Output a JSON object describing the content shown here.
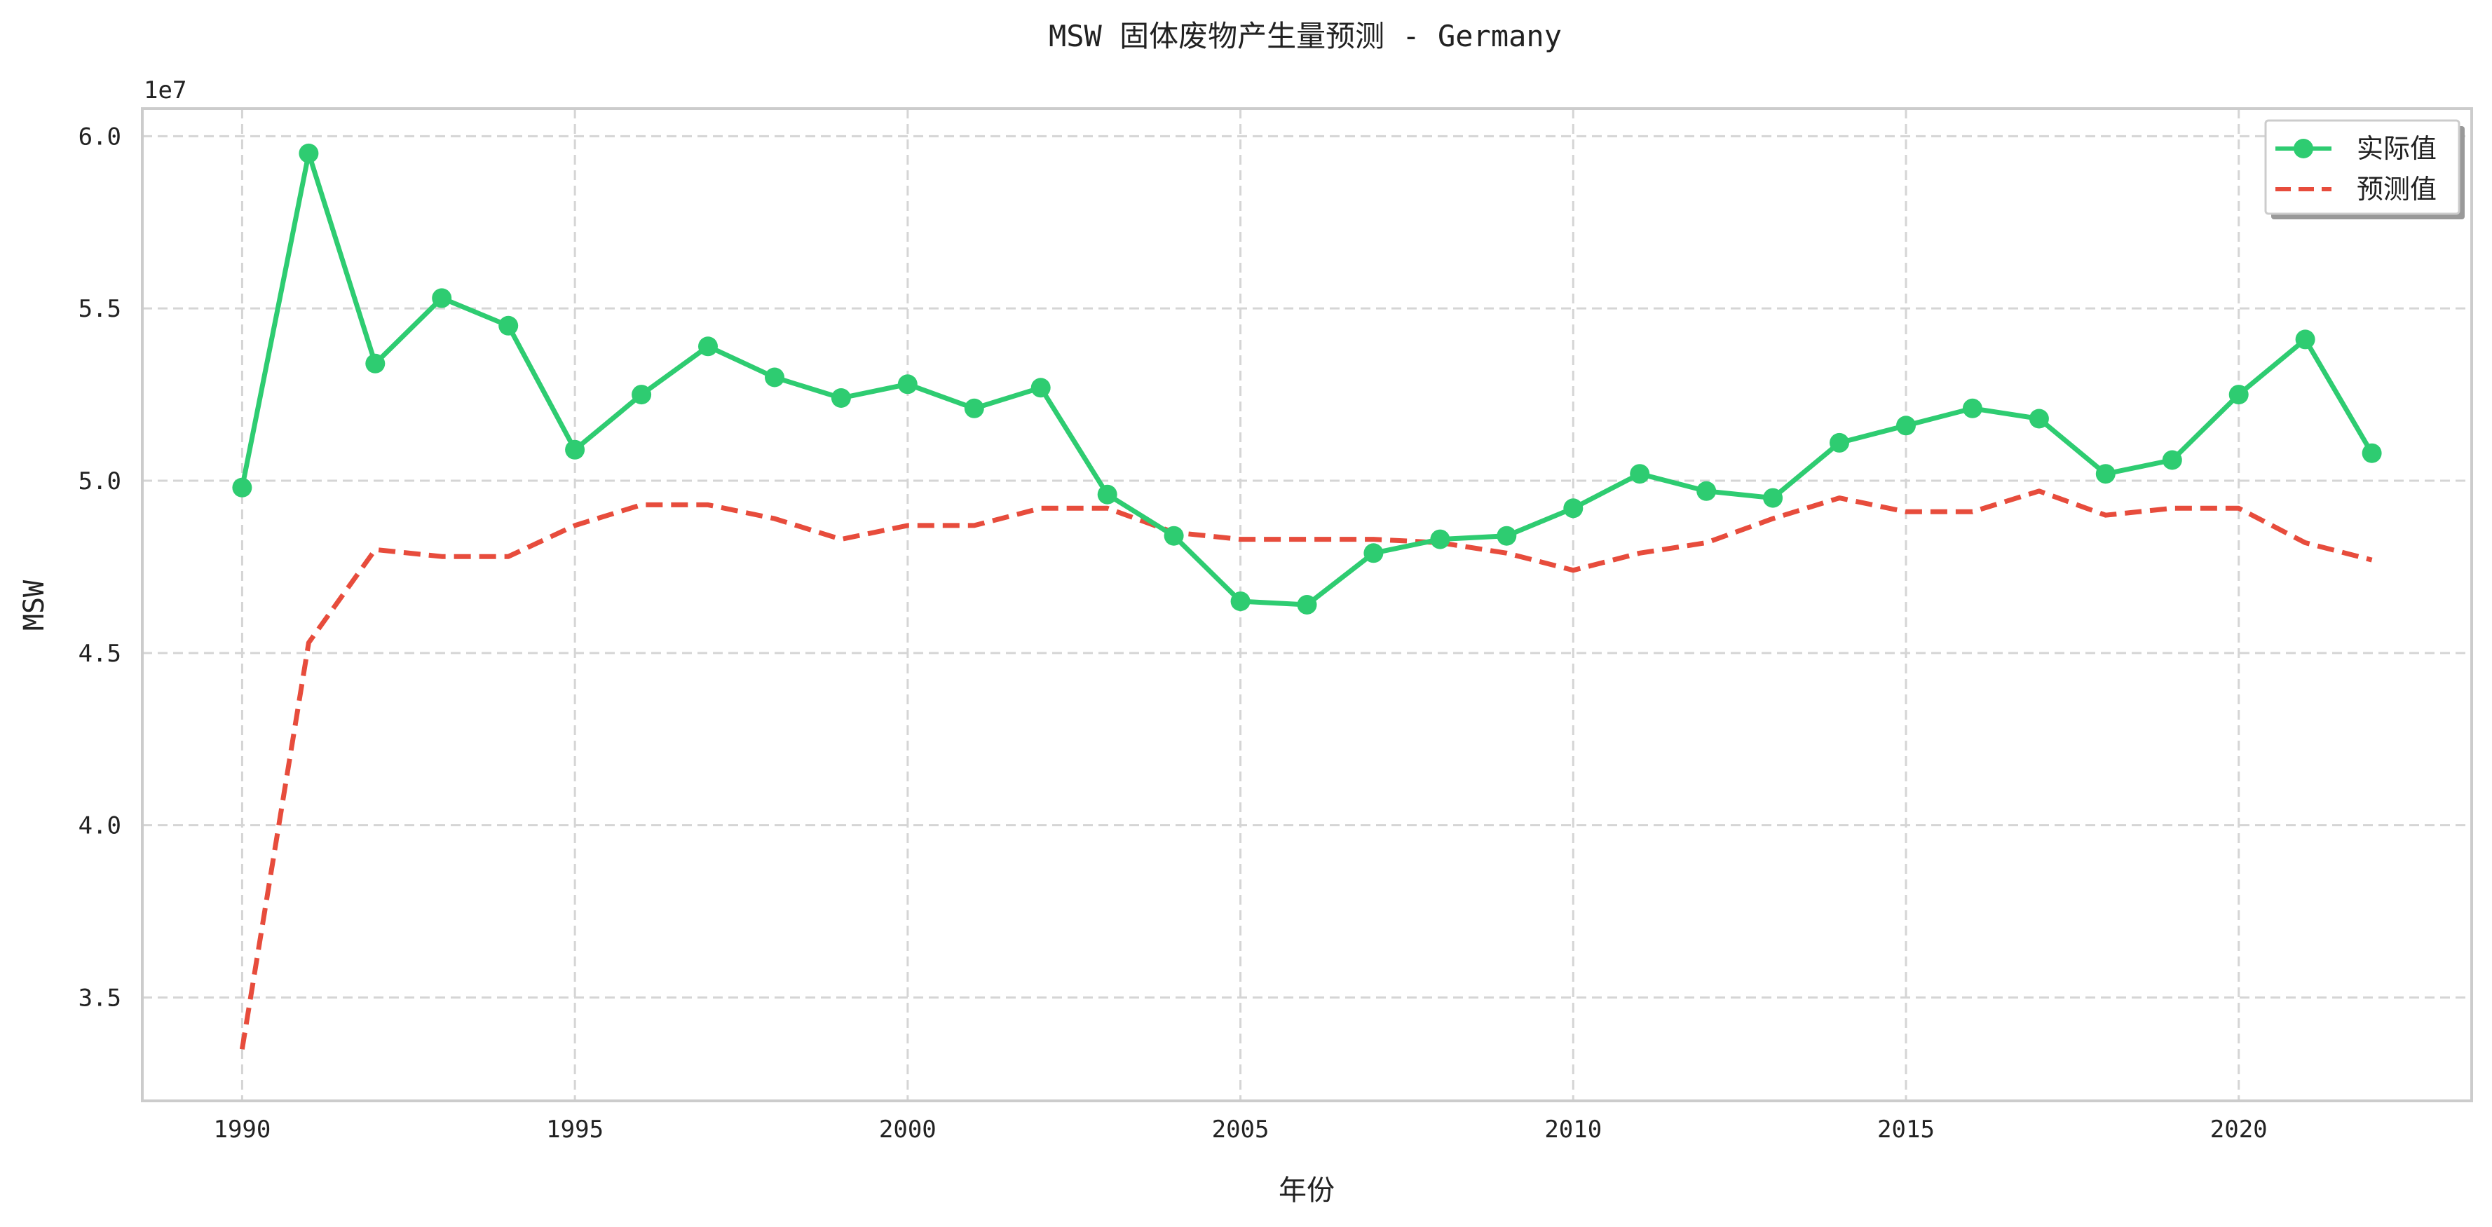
{
  "chart_data": {
    "type": "line",
    "title": "MSW 固体废物产生量预测 - Germany",
    "xlabel": "年份",
    "ylabel": "MSW",
    "y_offset_label": "1e7",
    "xlim": [
      1988.5,
      2023.5
    ],
    "ylim": [
      3.2,
      6.08
    ],
    "y_scale_note": "values in units of 1e7",
    "x_ticks": [
      1990,
      1995,
      2000,
      2005,
      2010,
      2015,
      2020
    ],
    "x_tick_labels": [
      "1990",
      "1995",
      "2000",
      "2005",
      "2010",
      "2015",
      "2020"
    ],
    "y_ticks": [
      3.5,
      4.0,
      4.5,
      5.0,
      5.5,
      6.0
    ],
    "y_tick_labels": [
      "3.5",
      "4.0",
      "4.5",
      "5.0",
      "5.5",
      "6.0"
    ],
    "grid": true,
    "legend_position": "top-right",
    "x": [
      1990,
      1991,
      1992,
      1993,
      1994,
      1995,
      1996,
      1997,
      1998,
      1999,
      2000,
      2001,
      2002,
      2003,
      2004,
      2005,
      2006,
      2007,
      2008,
      2009,
      2010,
      2011,
      2012,
      2013,
      2014,
      2015,
      2016,
      2017,
      2018,
      2019,
      2020,
      2021,
      2022
    ],
    "series": [
      {
        "name": "实际值",
        "style": "solid-marker",
        "color": "#2ecc71",
        "values": [
          4.98,
          5.95,
          5.34,
          5.53,
          5.45,
          5.09,
          5.25,
          5.39,
          5.3,
          5.24,
          5.28,
          5.21,
          5.27,
          4.96,
          4.84,
          4.65,
          4.64,
          4.79,
          4.83,
          4.84,
          4.92,
          5.02,
          4.97,
          4.95,
          5.11,
          5.16,
          5.21,
          5.18,
          5.02,
          5.06,
          5.25,
          5.41,
          5.08
        ]
      },
      {
        "name": "预测值",
        "style": "dashed",
        "color": "#e74c3c",
        "values": [
          3.35,
          4.53,
          4.8,
          4.78,
          4.78,
          4.87,
          4.93,
          4.93,
          4.89,
          4.83,
          4.87,
          4.87,
          4.92,
          4.92,
          4.85,
          4.83,
          4.83,
          4.83,
          4.82,
          4.79,
          4.74,
          4.79,
          4.82,
          4.89,
          4.95,
          4.91,
          4.91,
          4.97,
          4.9,
          4.92,
          4.92,
          4.82,
          4.77
        ]
      }
    ]
  }
}
